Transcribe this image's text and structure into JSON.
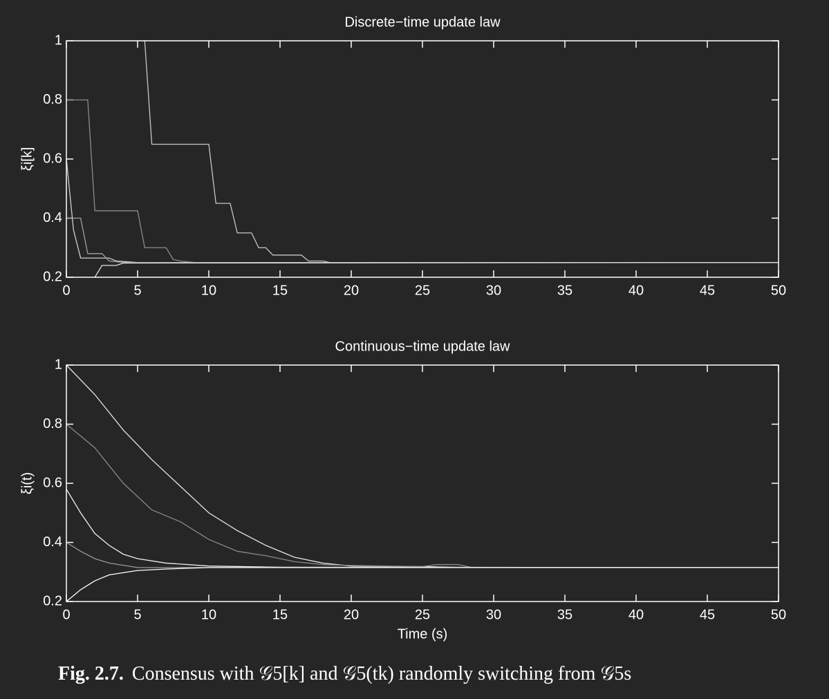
{
  "chart_data": [
    {
      "type": "line",
      "title": "Discrete−time update law",
      "ylabel": "ξi[k]",
      "xlim": [
        0,
        50
      ],
      "ylim": [
        0.2,
        1
      ],
      "xticks": [
        0,
        5,
        10,
        15,
        20,
        25,
        30,
        35,
        40,
        45,
        50
      ],
      "yticks": [
        0.2,
        0.4,
        0.6,
        0.8,
        1
      ],
      "series": [
        {
          "color": "#c8c8c8",
          "x": [
            5.5,
            6,
            10,
            10.5,
            11.5,
            12,
            13,
            13.5,
            14,
            14.5,
            16.5,
            17,
            18,
            18.5,
            50
          ],
          "values": [
            1,
            0.65,
            0.65,
            0.45,
            0.45,
            0.35,
            0.35,
            0.3,
            0.3,
            0.275,
            0.275,
            0.255,
            0.255,
            0.25,
            0.25
          ]
        },
        {
          "color": "#8c8c8c",
          "x": [
            0,
            1.5,
            2,
            5,
            5.5,
            7,
            7.5,
            8,
            9,
            50
          ],
          "values": [
            0.8,
            0.8,
            0.425,
            0.425,
            0.3,
            0.3,
            0.26,
            0.255,
            0.25,
            0.25
          ]
        },
        {
          "color": "#d0d0d0",
          "x": [
            0,
            0.5,
            1,
            3,
            3.5,
            5,
            50
          ],
          "values": [
            0.6,
            0.36,
            0.265,
            0.265,
            0.255,
            0.25,
            0.25
          ]
        },
        {
          "color": "#a0a0a0",
          "x": [
            0,
            1,
            1.5,
            2.5,
            3,
            4,
            50
          ],
          "values": [
            0.4,
            0.4,
            0.28,
            0.28,
            0.255,
            0.25,
            0.25
          ]
        },
        {
          "color": "#e0e0e0",
          "x": [
            2,
            2.5,
            3.5,
            4,
            50
          ],
          "values": [
            0.2,
            0.24,
            0.24,
            0.248,
            0.25
          ]
        }
      ]
    },
    {
      "type": "line",
      "title": "Continuous−time update law",
      "ylabel": "ξi(t)",
      "xlabel": "Time (s)",
      "xlim": [
        0,
        50
      ],
      "ylim": [
        0.2,
        1
      ],
      "xticks": [
        0,
        5,
        10,
        15,
        20,
        25,
        30,
        35,
        40,
        45,
        50
      ],
      "yticks": [
        0.2,
        0.4,
        0.6,
        0.8,
        1
      ],
      "series": [
        {
          "color": "#e6e6e6",
          "x": [
            0,
            2,
            4,
            6,
            8,
            10,
            12,
            14,
            16,
            18,
            20,
            25,
            28,
            50
          ],
          "values": [
            1,
            0.9,
            0.78,
            0.68,
            0.59,
            0.5,
            0.44,
            0.39,
            0.35,
            0.33,
            0.32,
            0.318,
            0.315,
            0.315
          ]
        },
        {
          "color": "#8a8a8a",
          "x": [
            0,
            2,
            4,
            6,
            8,
            10,
            12,
            14,
            16,
            18,
            20,
            25,
            26,
            27.5,
            28.5,
            50
          ],
          "values": [
            0.8,
            0.72,
            0.6,
            0.51,
            0.47,
            0.41,
            0.37,
            0.355,
            0.335,
            0.325,
            0.322,
            0.318,
            0.325,
            0.325,
            0.315,
            0.315
          ]
        },
        {
          "color": "#f0f0f0",
          "x": [
            0,
            1,
            2,
            3,
            4,
            5,
            7,
            10,
            15,
            50
          ],
          "values": [
            0.58,
            0.5,
            0.43,
            0.39,
            0.36,
            0.345,
            0.33,
            0.32,
            0.316,
            0.315
          ]
        },
        {
          "color": "#9a9a9a",
          "x": [
            0,
            1,
            2,
            3,
            5,
            10,
            50
          ],
          "values": [
            0.4,
            0.37,
            0.345,
            0.33,
            0.315,
            0.315,
            0.315
          ]
        },
        {
          "color": "#ffffff",
          "x": [
            0,
            1,
            2,
            3,
            5,
            7,
            10,
            50
          ],
          "values": [
            0.2,
            0.24,
            0.27,
            0.29,
            0.305,
            0.31,
            0.315,
            0.315
          ]
        }
      ]
    }
  ],
  "caption": {
    "label": "Fig. 2.7.",
    "text": "Consensus with 𝒢5[k] and 𝒢5(tk) randomly switching from 𝒢5s"
  }
}
